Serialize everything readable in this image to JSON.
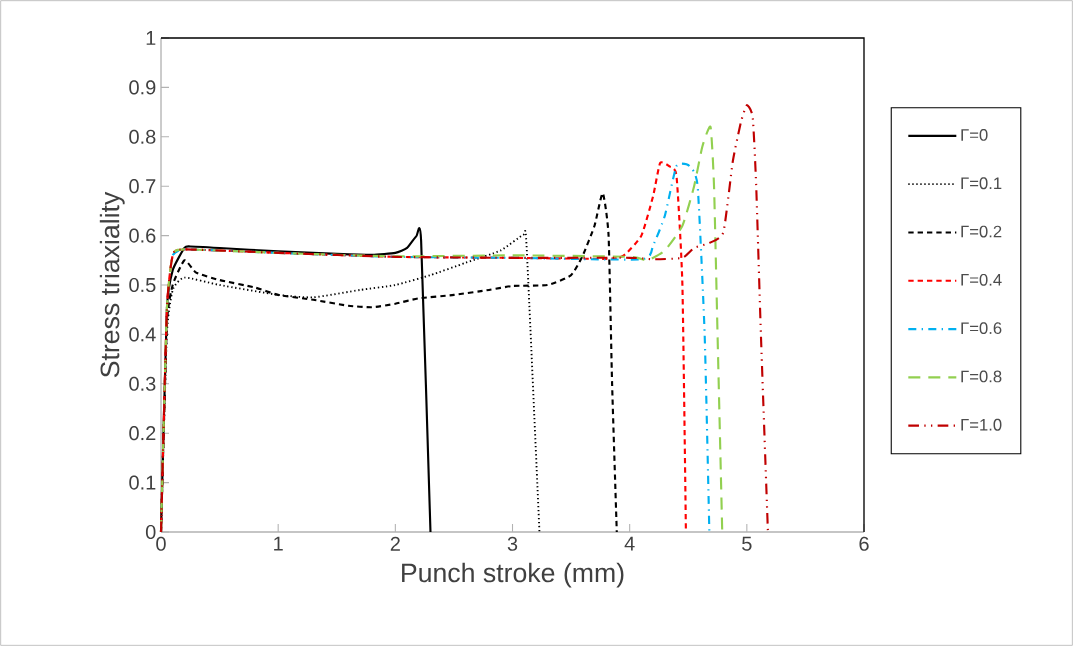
{
  "chart_data": {
    "type": "line",
    "xlabel": "Punch stroke (mm)",
    "ylabel": "Stress triaxiality",
    "xlim": [
      0,
      6
    ],
    "ylim": [
      0,
      1
    ],
    "xticks": [
      0,
      1,
      2,
      3,
      4,
      5,
      6
    ],
    "yticks": [
      0,
      0.1,
      0.2,
      0.3,
      0.4,
      0.5,
      0.6,
      0.7,
      0.8,
      0.9,
      1
    ],
    "grid": false,
    "legend": "right",
    "marker": "none",
    "series": [
      {
        "name": "Γ=0",
        "color": "#000000",
        "line_style": "solid",
        "x": [
          0,
          0.05,
          0.1,
          0.2,
          0.25,
          0.5,
          1,
          1.5,
          1.8,
          2.0,
          2.1,
          2.18,
          2.22,
          2.3
        ],
        "values": [
          0,
          0.45,
          0.53,
          0.575,
          0.578,
          0.575,
          0.568,
          0.563,
          0.561,
          0.565,
          0.575,
          0.599,
          0.59,
          0
        ]
      },
      {
        "name": "Γ=0.1",
        "color": "#000000",
        "line_style": "dotted",
        "x": [
          0,
          0.05,
          0.1,
          0.2,
          0.5,
          1,
          1.3,
          1.7,
          2.0,
          2.3,
          2.6,
          2.9,
          3.09,
          3.12,
          3.23
        ],
        "values": [
          0,
          0.4,
          0.49,
          0.515,
          0.5,
          0.48,
          0.475,
          0.49,
          0.5,
          0.52,
          0.545,
          0.57,
          0.601,
          0.58,
          0
        ]
      },
      {
        "name": "Γ=0.2",
        "color": "#000000",
        "line_style": "dashed",
        "x": [
          0,
          0.05,
          0.1,
          0.2,
          0.3,
          0.5,
          0.8,
          1.0,
          1.3,
          1.6,
          1.8,
          2.0,
          2.2,
          2.5,
          2.8,
          3.0,
          3.3,
          3.5,
          3.6,
          3.7,
          3.77,
          3.82,
          3.85,
          3.89
        ],
        "values": [
          0,
          0.42,
          0.5,
          0.55,
          0.525,
          0.51,
          0.495,
          0.48,
          0.47,
          0.458,
          0.455,
          0.462,
          0.473,
          0.48,
          0.49,
          0.498,
          0.5,
          0.52,
          0.56,
          0.62,
          0.686,
          0.6,
          0.3,
          0
        ]
      },
      {
        "name": "Γ=0.4",
        "color": "#ff0000",
        "line_style": "dashed",
        "x": [
          0,
          0.05,
          0.1,
          0.2,
          1,
          2,
          3,
          3.8,
          3.95,
          4.1,
          4.2,
          4.26,
          4.34,
          4.4,
          4.45,
          4.48
        ],
        "values": [
          0,
          0.45,
          0.56,
          0.572,
          0.565,
          0.557,
          0.555,
          0.553,
          0.56,
          0.6,
          0.68,
          0.747,
          0.74,
          0.72,
          0.5,
          0
        ]
      },
      {
        "name": "Γ=0.6",
        "color": "#00b0f0",
        "line_style": "dashdot",
        "x": [
          0.1,
          0.2,
          1,
          2,
          3,
          4.1,
          4.2,
          4.3,
          4.4,
          4.51,
          4.58,
          4.64,
          4.68
        ],
        "values": [
          0.56,
          0.572,
          0.565,
          0.557,
          0.555,
          0.552,
          0.58,
          0.64,
          0.741,
          0.741,
          0.7,
          0.4,
          0
        ]
      },
      {
        "name": "Γ=0.8",
        "color": "#92d050",
        "line_style": "longdashed",
        "x": [
          0,
          0.05,
          0.1,
          0.2,
          1,
          2,
          3,
          4.0,
          4.15,
          4.3,
          4.45,
          4.55,
          4.62,
          4.69,
          4.72,
          4.75,
          4.79
        ],
        "values": [
          0,
          0.45,
          0.56,
          0.572,
          0.565,
          0.558,
          0.56,
          0.557,
          0.55,
          0.57,
          0.62,
          0.7,
          0.78,
          0.82,
          0.7,
          0.4,
          0
        ]
      },
      {
        "name": "Γ=1.0",
        "color": "#c00000",
        "line_style": "dashdotdot",
        "x": [
          0,
          0.05,
          0.1,
          0.2,
          1,
          2,
          3,
          4.0,
          4.2,
          4.45,
          4.55,
          4.68,
          4.8,
          4.88,
          4.95,
          5.0,
          5.05,
          5.08,
          5.12,
          5.18
        ],
        "values": [
          0,
          0.45,
          0.56,
          0.572,
          0.565,
          0.557,
          0.555,
          0.555,
          0.552,
          0.555,
          0.575,
          0.585,
          0.607,
          0.75,
          0.83,
          0.864,
          0.84,
          0.7,
          0.4,
          0
        ]
      }
    ]
  }
}
